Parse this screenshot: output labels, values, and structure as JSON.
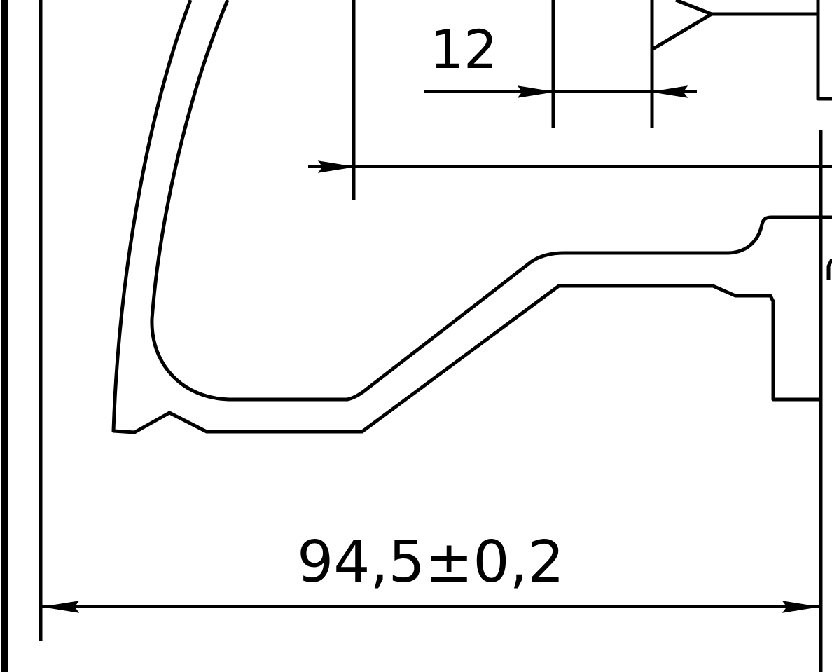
{
  "drawing": {
    "dimensions": {
      "top_small": "12",
      "bottom_width": "94,5±0,2"
    },
    "symbols": {
      "triangle_marker": "triangle-marker-icon"
    },
    "colors": {
      "line": "#000000",
      "background": "#ffffff"
    }
  }
}
